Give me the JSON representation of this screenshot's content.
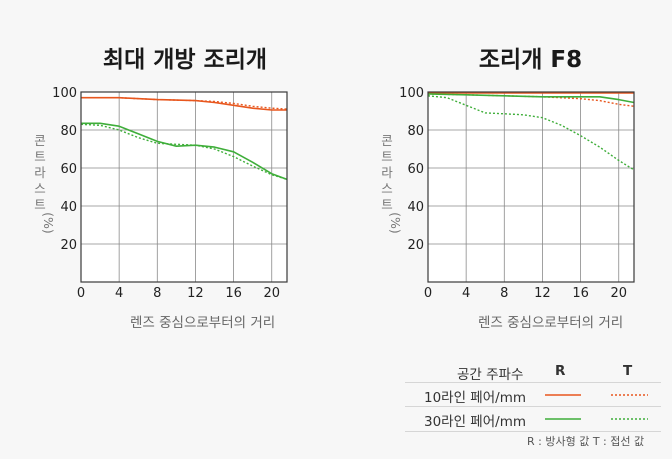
{
  "chart_data": [
    {
      "type": "line",
      "title": "최대 개방 조리개",
      "xlabel": "렌즈 중심으로부터의 거리",
      "ylabel": "콘트라스트 (%)",
      "xlim": [
        0,
        21.6
      ],
      "ylim": [
        0,
        100
      ],
      "xticks": [
        "0",
        "4",
        "8",
        "12",
        "16",
        "20"
      ],
      "yticks": [
        "20",
        "40",
        "60",
        "80",
        "100"
      ],
      "grid": true,
      "series": [
        {
          "key": "10-R",
          "x": [
            0,
            4,
            8,
            12,
            14,
            16,
            18,
            20,
            21.6
          ],
          "y": [
            97,
            97,
            96,
            95.5,
            94.5,
            93,
            91.5,
            90.5,
            90.5
          ]
        },
        {
          "key": "10-T",
          "x": [
            0,
            4,
            8,
            12,
            14,
            16,
            18,
            20,
            21.6
          ],
          "y": [
            97,
            97,
            96,
            95.5,
            95,
            94,
            92.5,
            91.5,
            91
          ]
        },
        {
          "key": "30-R",
          "x": [
            0,
            2,
            4,
            6,
            8,
            10,
            12,
            14,
            16,
            18,
            20,
            21.6
          ],
          "y": [
            83.5,
            83.5,
            82,
            78,
            74,
            71.5,
            72,
            71,
            68.5,
            63,
            57,
            54
          ]
        },
        {
          "key": "30-T",
          "x": [
            0,
            2,
            4,
            6,
            8,
            10,
            12,
            14,
            16,
            18,
            20,
            21.6
          ],
          "y": [
            83,
            82.5,
            80,
            76,
            73,
            72.5,
            72,
            70,
            66,
            61,
            56.5,
            54
          ]
        }
      ]
    },
    {
      "type": "line",
      "title": "조리개 F8",
      "xlabel": "렌즈 중심으로부터의 거리",
      "ylabel": "콘트라스트 (%)",
      "xlim": [
        0,
        21.6
      ],
      "ylim": [
        0,
        100
      ],
      "xticks": [
        "0",
        "4",
        "8",
        "12",
        "16",
        "20"
      ],
      "yticks": [
        "20",
        "40",
        "60",
        "80",
        "100"
      ],
      "grid": true,
      "series": [
        {
          "key": "10-R",
          "x": [
            0,
            4,
            8,
            12,
            16,
            20,
            21.6
          ],
          "y": [
            99.5,
            99.5,
            99.5,
            99.5,
            99.5,
            99.5,
            99.5
          ]
        },
        {
          "key": "10-T",
          "x": [
            0,
            4,
            8,
            12,
            16,
            18,
            20,
            21.6
          ],
          "y": [
            99,
            98.5,
            98,
            97.5,
            96.5,
            95.5,
            93.5,
            92.5
          ]
        },
        {
          "key": "30-R",
          "x": [
            0,
            4,
            8,
            12,
            16,
            18,
            20,
            21.6
          ],
          "y": [
            99,
            98.5,
            98,
            97.5,
            97.5,
            97.5,
            96,
            94.5
          ]
        },
        {
          "key": "30-T",
          "x": [
            0,
            2,
            4,
            6,
            8,
            10,
            12,
            14,
            16,
            18,
            20,
            21.6
          ],
          "y": [
            98,
            97,
            93,
            89,
            88.5,
            88,
            86.5,
            82.5,
            77,
            71,
            64,
            59
          ]
        }
      ]
    }
  ],
  "legend": {
    "header_label": "공간 주파수",
    "header_R": "R",
    "header_T": "T",
    "rows": [
      {
        "label": "10라인 페어/mm",
        "color": "#e8571e"
      },
      {
        "label": "30라인 페어/mm",
        "color": "#3fae3a"
      }
    ],
    "note": "R : 방사형 값     T : 접선 값"
  },
  "colors": {
    "orange": "#e8571e",
    "green": "#3fae3a",
    "grid": "#8a8a8a",
    "frame": "#3a3a3a"
  }
}
